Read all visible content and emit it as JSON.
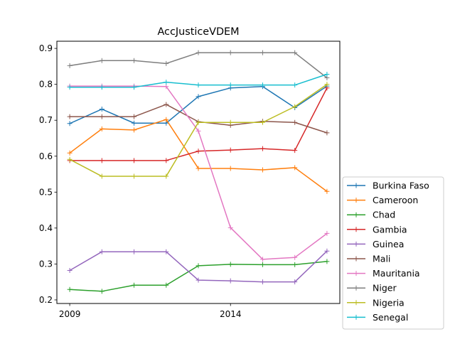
{
  "chart_data": {
    "type": "line",
    "title": "AccJusticeVDEM",
    "xlabel": "",
    "ylabel": "",
    "x": [
      2009,
      2010,
      2011,
      2012,
      2013,
      2014,
      2015,
      2016,
      2017
    ],
    "x_ticks": [
      2009,
      2014
    ],
    "x_tick_labels": [
      "2009",
      "2014"
    ],
    "xlim": [
      2008.6,
      2017.4
    ],
    "ylim": [
      0.19,
      0.92
    ],
    "y_ticks": [
      0.2,
      0.3,
      0.4,
      0.5,
      0.6,
      0.7,
      0.8,
      0.9
    ],
    "y_tick_labels": [
      "0.2",
      "0.3",
      "0.4",
      "0.5",
      "0.6",
      "0.7",
      "0.8",
      "0.9"
    ],
    "grid": false,
    "legend_position": "outside-right-bottom",
    "marker": "+",
    "series": [
      {
        "name": "Burkina Faso",
        "color": "#1f77b4",
        "values": [
          0.691,
          0.731,
          0.692,
          0.692,
          0.766,
          0.79,
          0.794,
          0.735,
          0.795
        ]
      },
      {
        "name": "Cameroon",
        "color": "#ff7f0e",
        "values": [
          0.609,
          0.676,
          0.673,
          0.702,
          0.566,
          0.566,
          0.562,
          0.568,
          0.502
        ]
      },
      {
        "name": "Chad",
        "color": "#2ca02c",
        "values": [
          0.229,
          0.224,
          0.241,
          0.241,
          0.295,
          0.299,
          0.298,
          0.298,
          0.307
        ]
      },
      {
        "name": "Gambia",
        "color": "#d62728",
        "values": [
          0.588,
          0.588,
          0.588,
          0.588,
          0.614,
          0.617,
          0.621,
          0.616,
          0.79
        ]
      },
      {
        "name": "Guinea",
        "color": "#9467bd",
        "values": [
          0.282,
          0.334,
          0.334,
          0.334,
          0.255,
          0.253,
          0.25,
          0.25,
          0.336
        ]
      },
      {
        "name": "Mali",
        "color": "#8c564b",
        "values": [
          0.71,
          0.71,
          0.71,
          0.744,
          0.696,
          0.686,
          0.697,
          0.694,
          0.665
        ]
      },
      {
        "name": "Mauritania",
        "color": "#e377c2",
        "values": [
          0.795,
          0.795,
          0.795,
          0.794,
          0.67,
          0.401,
          0.313,
          0.318,
          0.385
        ]
      },
      {
        "name": "Niger",
        "color": "#7f7f7f",
        "values": [
          0.852,
          0.866,
          0.866,
          0.858,
          0.888,
          0.888,
          0.888,
          0.888,
          0.818
        ]
      },
      {
        "name": "Nigeria",
        "color": "#bcbd22",
        "values": [
          0.591,
          0.544,
          0.544,
          0.544,
          0.694,
          0.694,
          0.694,
          0.738,
          0.8
        ]
      },
      {
        "name": "Senegal",
        "color": "#17becf",
        "values": [
          0.792,
          0.792,
          0.792,
          0.806,
          0.798,
          0.798,
          0.798,
          0.798,
          0.828
        ]
      }
    ]
  }
}
